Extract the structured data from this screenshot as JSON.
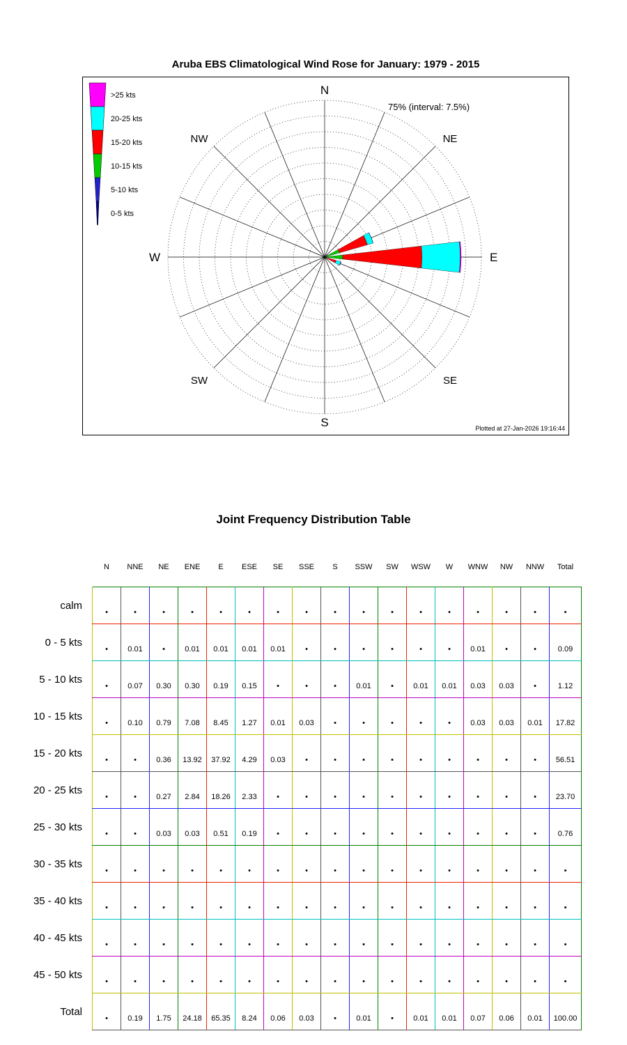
{
  "title": "Aruba EBS Climatological Wind Rose for January: 1979 - 2015",
  "rose": {
    "interval_label": "75% (interval: 7.5%)",
    "footer": "Plotted at 27-Jan-2026 19:16:44",
    "compass": {
      "n": "N",
      "ne": "NE",
      "e": "E",
      "se": "SE",
      "s": "S",
      "sw": "SW",
      "w": "W",
      "nw": "NW"
    },
    "legend": [
      {
        "label": ">25 kts",
        "color": "#ff00ff"
      },
      {
        "label": "20-25 kts",
        "color": "#00ffff"
      },
      {
        "label": "15-20 kts",
        "color": "#ff0000"
      },
      {
        "label": "10-15 kts",
        "color": "#00cc00"
      },
      {
        "label": "5-10 kts",
        "color": "#2222cc"
      },
      {
        "label": "0-5 kts",
        "color": "#000088"
      }
    ]
  },
  "chart_data": {
    "type": "windrose",
    "title": "Aruba EBS Climatological Wind Rose for January: 1979 - 2015",
    "ring_interval_pct": 7.5,
    "ring_max_pct": 75,
    "ring_count": 10,
    "grid": "dotted concentric circles with 16 radial spokes",
    "legend_position": "top-left",
    "directions": [
      "N",
      "NNE",
      "NE",
      "ENE",
      "E",
      "ESE",
      "SE",
      "SSE",
      "S",
      "SSW",
      "SW",
      "WSW",
      "W",
      "WNW",
      "NW",
      "NNW"
    ],
    "speed_bins": [
      "0-5 kts",
      "5-10 kts",
      "10-15 kts",
      "15-20 kts",
      "20-25 kts",
      ">25 kts"
    ],
    "series": [
      {
        "name": "0-5 kts",
        "color": "#000088",
        "values": [
          0,
          0.01,
          0,
          0.01,
          0.01,
          0.01,
          0.01,
          0,
          0,
          0,
          0,
          0,
          0,
          0.01,
          0,
          0
        ]
      },
      {
        "name": "5-10 kts",
        "color": "#2222cc",
        "values": [
          0,
          0.07,
          0.3,
          0.3,
          0.19,
          0.15,
          0,
          0,
          0,
          0.01,
          0,
          0.01,
          0.01,
          0.03,
          0.03,
          0
        ]
      },
      {
        "name": "10-15 kts",
        "color": "#00cc00",
        "values": [
          0,
          0.1,
          0.79,
          7.08,
          8.45,
          1.27,
          0.01,
          0.03,
          0,
          0,
          0,
          0,
          0,
          0.03,
          0.03,
          0.01
        ]
      },
      {
        "name": "15-20 kts",
        "color": "#ff0000",
        "values": [
          0,
          0,
          0.36,
          13.92,
          37.92,
          4.29,
          0.03,
          0,
          0,
          0,
          0,
          0,
          0,
          0,
          0,
          0
        ]
      },
      {
        "name": "20-25 kts",
        "color": "#00ffff",
        "values": [
          0,
          0,
          0.27,
          2.84,
          18.26,
          2.33,
          0,
          0,
          0,
          0,
          0,
          0,
          0,
          0,
          0,
          0
        ]
      },
      {
        "name": ">25 kts",
        "color": "#ff00ff",
        "values": [
          0,
          0,
          0.03,
          0.03,
          0.51,
          0.19,
          0,
          0,
          0,
          0,
          0,
          0,
          0,
          0,
          0,
          0
        ]
      }
    ]
  },
  "table": {
    "title": "Joint Frequency Distribution Table",
    "columns": [
      "N",
      "NNE",
      "NE",
      "ENE",
      "E",
      "ESE",
      "SE",
      "SSE",
      "S",
      "SSW",
      "SW",
      "WSW",
      "W",
      "WNW",
      "NW",
      "NNW",
      "Total"
    ],
    "rows": [
      {
        "label": "calm",
        "values": [
          "•",
          "•",
          "•",
          "•",
          "•",
          "•",
          "•",
          "•",
          "•",
          "•",
          "•",
          "•",
          "•",
          "•",
          "•",
          "•",
          "•"
        ]
      },
      {
        "label": "0 - 5  kts",
        "values": [
          "•",
          "0.01",
          "•",
          "0.01",
          "0.01",
          "0.01",
          "0.01",
          "•",
          "•",
          "•",
          "•",
          "•",
          "•",
          "0.01",
          "•",
          "•",
          "0.09"
        ]
      },
      {
        "label": "5 - 10 kts",
        "values": [
          "•",
          "0.07",
          "0.30",
          "0.30",
          "0.19",
          "0.15",
          "•",
          "•",
          "•",
          "0.01",
          "•",
          "0.01",
          "0.01",
          "0.03",
          "0.03",
          "•",
          "1.12"
        ]
      },
      {
        "label": "10 - 15 kts",
        "values": [
          "•",
          "0.10",
          "0.79",
          "7.08",
          "8.45",
          "1.27",
          "0.01",
          "0.03",
          "•",
          "•",
          "•",
          "•",
          "•",
          "0.03",
          "0.03",
          "0.01",
          "17.82"
        ]
      },
      {
        "label": "15 - 20 kts",
        "values": [
          "•",
          "•",
          "0.36",
          "13.92",
          "37.92",
          "4.29",
          "0.03",
          "•",
          "•",
          "•",
          "•",
          "•",
          "•",
          "•",
          "•",
          "•",
          "56.51"
        ]
      },
      {
        "label": "20 - 25 kts",
        "values": [
          "•",
          "•",
          "0.27",
          "2.84",
          "18.26",
          "2.33",
          "•",
          "•",
          "•",
          "•",
          "•",
          "•",
          "•",
          "•",
          "•",
          "•",
          "23.70"
        ]
      },
      {
        "label": "25 - 30 kts",
        "values": [
          "•",
          "•",
          "0.03",
          "0.03",
          "0.51",
          "0.19",
          "•",
          "•",
          "•",
          "•",
          "•",
          "•",
          "•",
          "•",
          "•",
          "•",
          "0.76"
        ]
      },
      {
        "label": "30 - 35 kts",
        "values": [
          "•",
          "•",
          "•",
          "•",
          "•",
          "•",
          "•",
          "•",
          "•",
          "•",
          "•",
          "•",
          "•",
          "•",
          "•",
          "•",
          "•"
        ]
      },
      {
        "label": "35 - 40 kts",
        "values": [
          "•",
          "•",
          "•",
          "•",
          "•",
          "•",
          "•",
          "•",
          "•",
          "•",
          "•",
          "•",
          "•",
          "•",
          "•",
          "•",
          "•"
        ]
      },
      {
        "label": "40 - 45 kts",
        "values": [
          "•",
          "•",
          "•",
          "•",
          "•",
          "•",
          "•",
          "•",
          "•",
          "•",
          "•",
          "•",
          "•",
          "•",
          "•",
          "•",
          "•"
        ]
      },
      {
        "label": "45 - 50 kts",
        "values": [
          "•",
          "•",
          "•",
          "•",
          "•",
          "•",
          "•",
          "•",
          "•",
          "•",
          "•",
          "•",
          "•",
          "•",
          "•",
          "•",
          "•"
        ]
      },
      {
        "label": "Total",
        "values": [
          "•",
          "0.19",
          "1.75",
          "24.18",
          "65.35",
          "8.24",
          "0.06",
          "0.03",
          "•",
          "0.01",
          "•",
          "0.01",
          "0.01",
          "0.07",
          "0.06",
          "0.01",
          "100.00"
        ]
      }
    ]
  }
}
